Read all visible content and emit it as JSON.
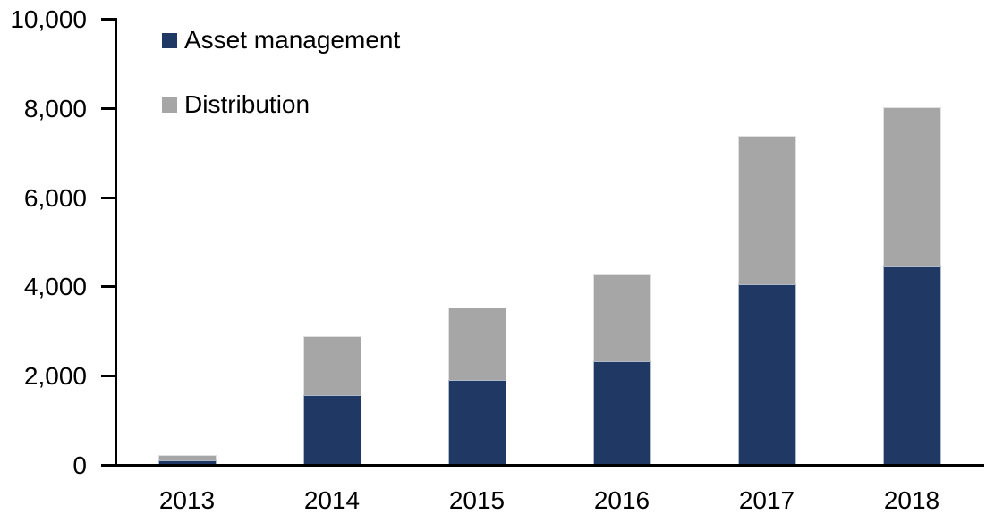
{
  "chart_data": {
    "type": "bar",
    "stacked": true,
    "title": "",
    "xlabel": "",
    "ylabel": "",
    "categories": [
      "2013",
      "2014",
      "2015",
      "2016",
      "2017",
      "2018"
    ],
    "series": [
      {
        "name": "Asset management",
        "color": "#1F3864",
        "values": [
          90,
          1540,
          1880,
          2300,
          4020,
          4420
        ]
      },
      {
        "name": "Distribution",
        "color": "#A6A6A6",
        "values": [
          110,
          1320,
          1620,
          1940,
          3340,
          3580
        ]
      }
    ],
    "totals": [
      200,
      2860,
      3500,
      4240,
      7360,
      8000
    ],
    "ylim": [
      0,
      10000
    ],
    "ytick_interval": 2000,
    "yticks": [
      0,
      2000,
      4000,
      6000,
      8000,
      10000
    ],
    "ytick_labels": [
      "0",
      "2,000",
      "4,000",
      "6,000",
      "8,000",
      "10,000"
    ],
    "grid": false,
    "legend_position": "top-left-inside"
  },
  "colors": {
    "axis": "#000000",
    "text": "#000000",
    "background": "#FFFFFF",
    "asset_management": "#1F3864",
    "distribution": "#A6A6A6"
  },
  "layout_values": {
    "note_visible_text_only": true
  }
}
